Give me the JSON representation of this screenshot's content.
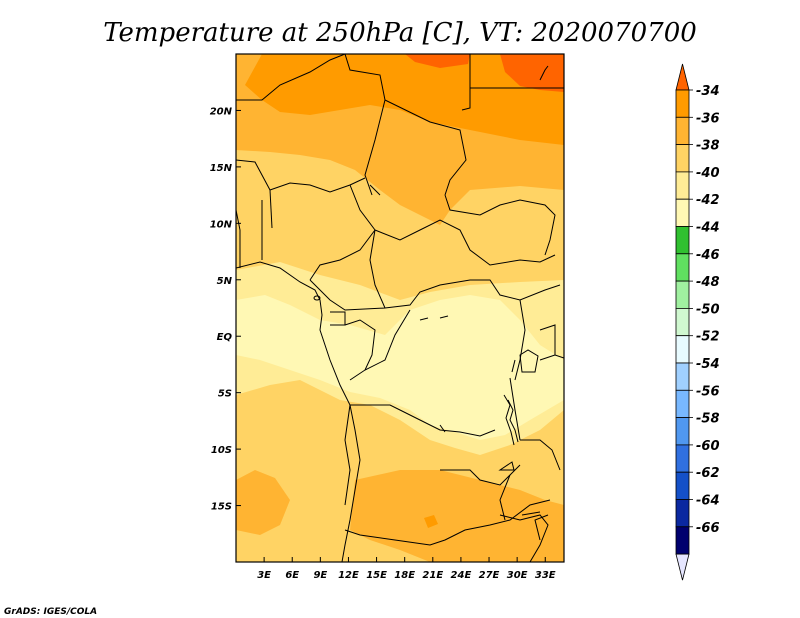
{
  "title": "Temperature at 250hPa [C], VT: 2020070700",
  "credit": "GrADS: IGES/COLA",
  "map": {
    "lat_ticks": [
      "20N",
      "15N",
      "10N",
      "5N",
      "EQ",
      "5S",
      "10S",
      "15S"
    ],
    "lat_values": [
      20,
      15,
      10,
      5,
      0,
      -5,
      -10,
      -15
    ],
    "lon_ticks": [
      "3E",
      "6E",
      "9E",
      "12E",
      "15E",
      "18E",
      "21E",
      "24E",
      "27E",
      "30E",
      "33E"
    ],
    "lon_values": [
      3,
      6,
      9,
      12,
      15,
      18,
      21,
      24,
      27,
      30,
      33
    ],
    "lon_range": [
      0,
      35
    ],
    "lat_range": [
      -20,
      25
    ]
  },
  "colorbar": {
    "labels": [
      "-34",
      "-36",
      "-38",
      "-40",
      "-42",
      "-44",
      "-46",
      "-48",
      "-50",
      "-52",
      "-54",
      "-56",
      "-58",
      "-60",
      "-62",
      "-64",
      "-66"
    ],
    "colors": [
      "#ff6400",
      "#ff9b00",
      "#ffb432",
      "#ffd364",
      "#ffec96",
      "#fff8b4",
      "#30c030",
      "#60e060",
      "#a0f0a0",
      "#d0f8d0",
      "#e8fbff",
      "#a0d0ff",
      "#78b8ff",
      "#5098f0",
      "#3070e0",
      "#1450c8",
      "#0a28a0",
      "#00006e",
      "#e6e6ff"
    ]
  }
}
